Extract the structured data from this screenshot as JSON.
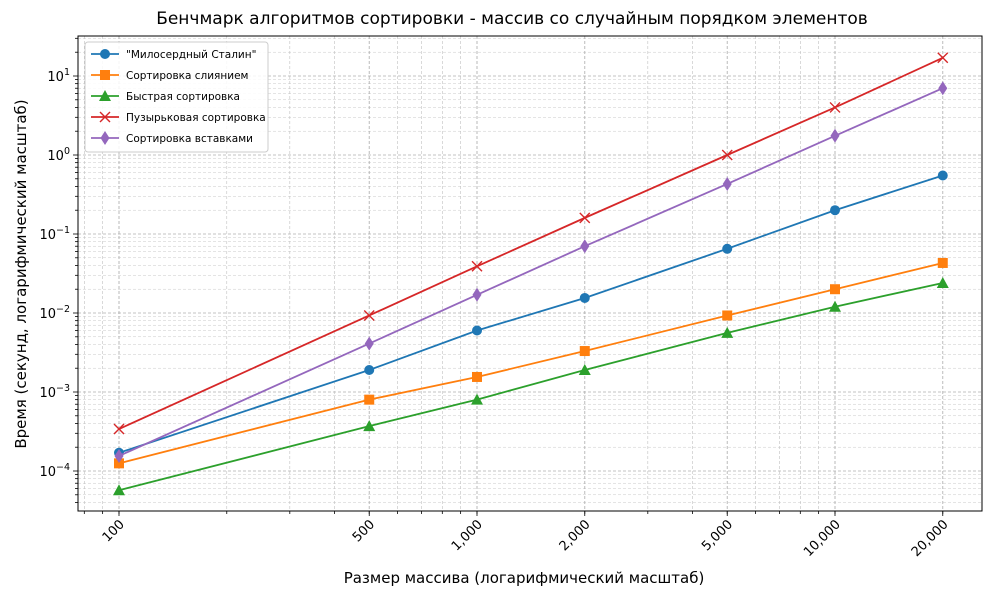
{
  "chart_data": {
    "type": "line",
    "title": "Бенчмарк алгоритмов сортировки - массив со случайным порядком элементов",
    "xlabel": "Размер массива (логарифмический масштаб)",
    "ylabel": "Время (секунд, логарифмический масштаб)",
    "xscale": "log",
    "yscale": "log",
    "x": [
      100,
      500,
      1000,
      2000,
      5000,
      10000,
      20000
    ],
    "x_tick_labels": [
      "100",
      "500",
      "1,000",
      "2,000",
      "5,000",
      "10,000",
      "20,000"
    ],
    "y_tick_labels": [
      "10^-4",
      "10^-3",
      "10^-2",
      "10^-1",
      "10^0",
      "10^1"
    ],
    "ylim": [
      3e-05,
      30
    ],
    "grid": true,
    "legend_position": "upper left",
    "series": [
      {
        "name": "\"Милосердный Сталин\"",
        "color": "#1f77b4",
        "marker": "circle",
        "values": [
          0.00017,
          0.0019,
          0.006,
          0.0155,
          0.065,
          0.2,
          0.55
        ]
      },
      {
        "name": "Сортировка слиянием",
        "color": "#ff7f0e",
        "marker": "square",
        "values": [
          0.000125,
          0.0008,
          0.00155,
          0.0033,
          0.0093,
          0.02,
          0.043
        ]
      },
      {
        "name": "Быстрая сортировка",
        "color": "#2ca02c",
        "marker": "triangle",
        "values": [
          5.7e-05,
          0.00037,
          0.0008,
          0.0019,
          0.0056,
          0.012,
          0.024
        ]
      },
      {
        "name": "Пузырьковая сортировка",
        "color": "#d62728",
        "marker": "x",
        "values": [
          0.00034,
          0.0093,
          0.039,
          0.16,
          1.0,
          4.0,
          17
        ]
      },
      {
        "name": "Сортировка вставками",
        "color": "#9467bd",
        "marker": "diamond",
        "values": [
          0.000155,
          0.0041,
          0.017,
          0.07,
          0.43,
          1.75,
          7.0
        ]
      }
    ]
  }
}
